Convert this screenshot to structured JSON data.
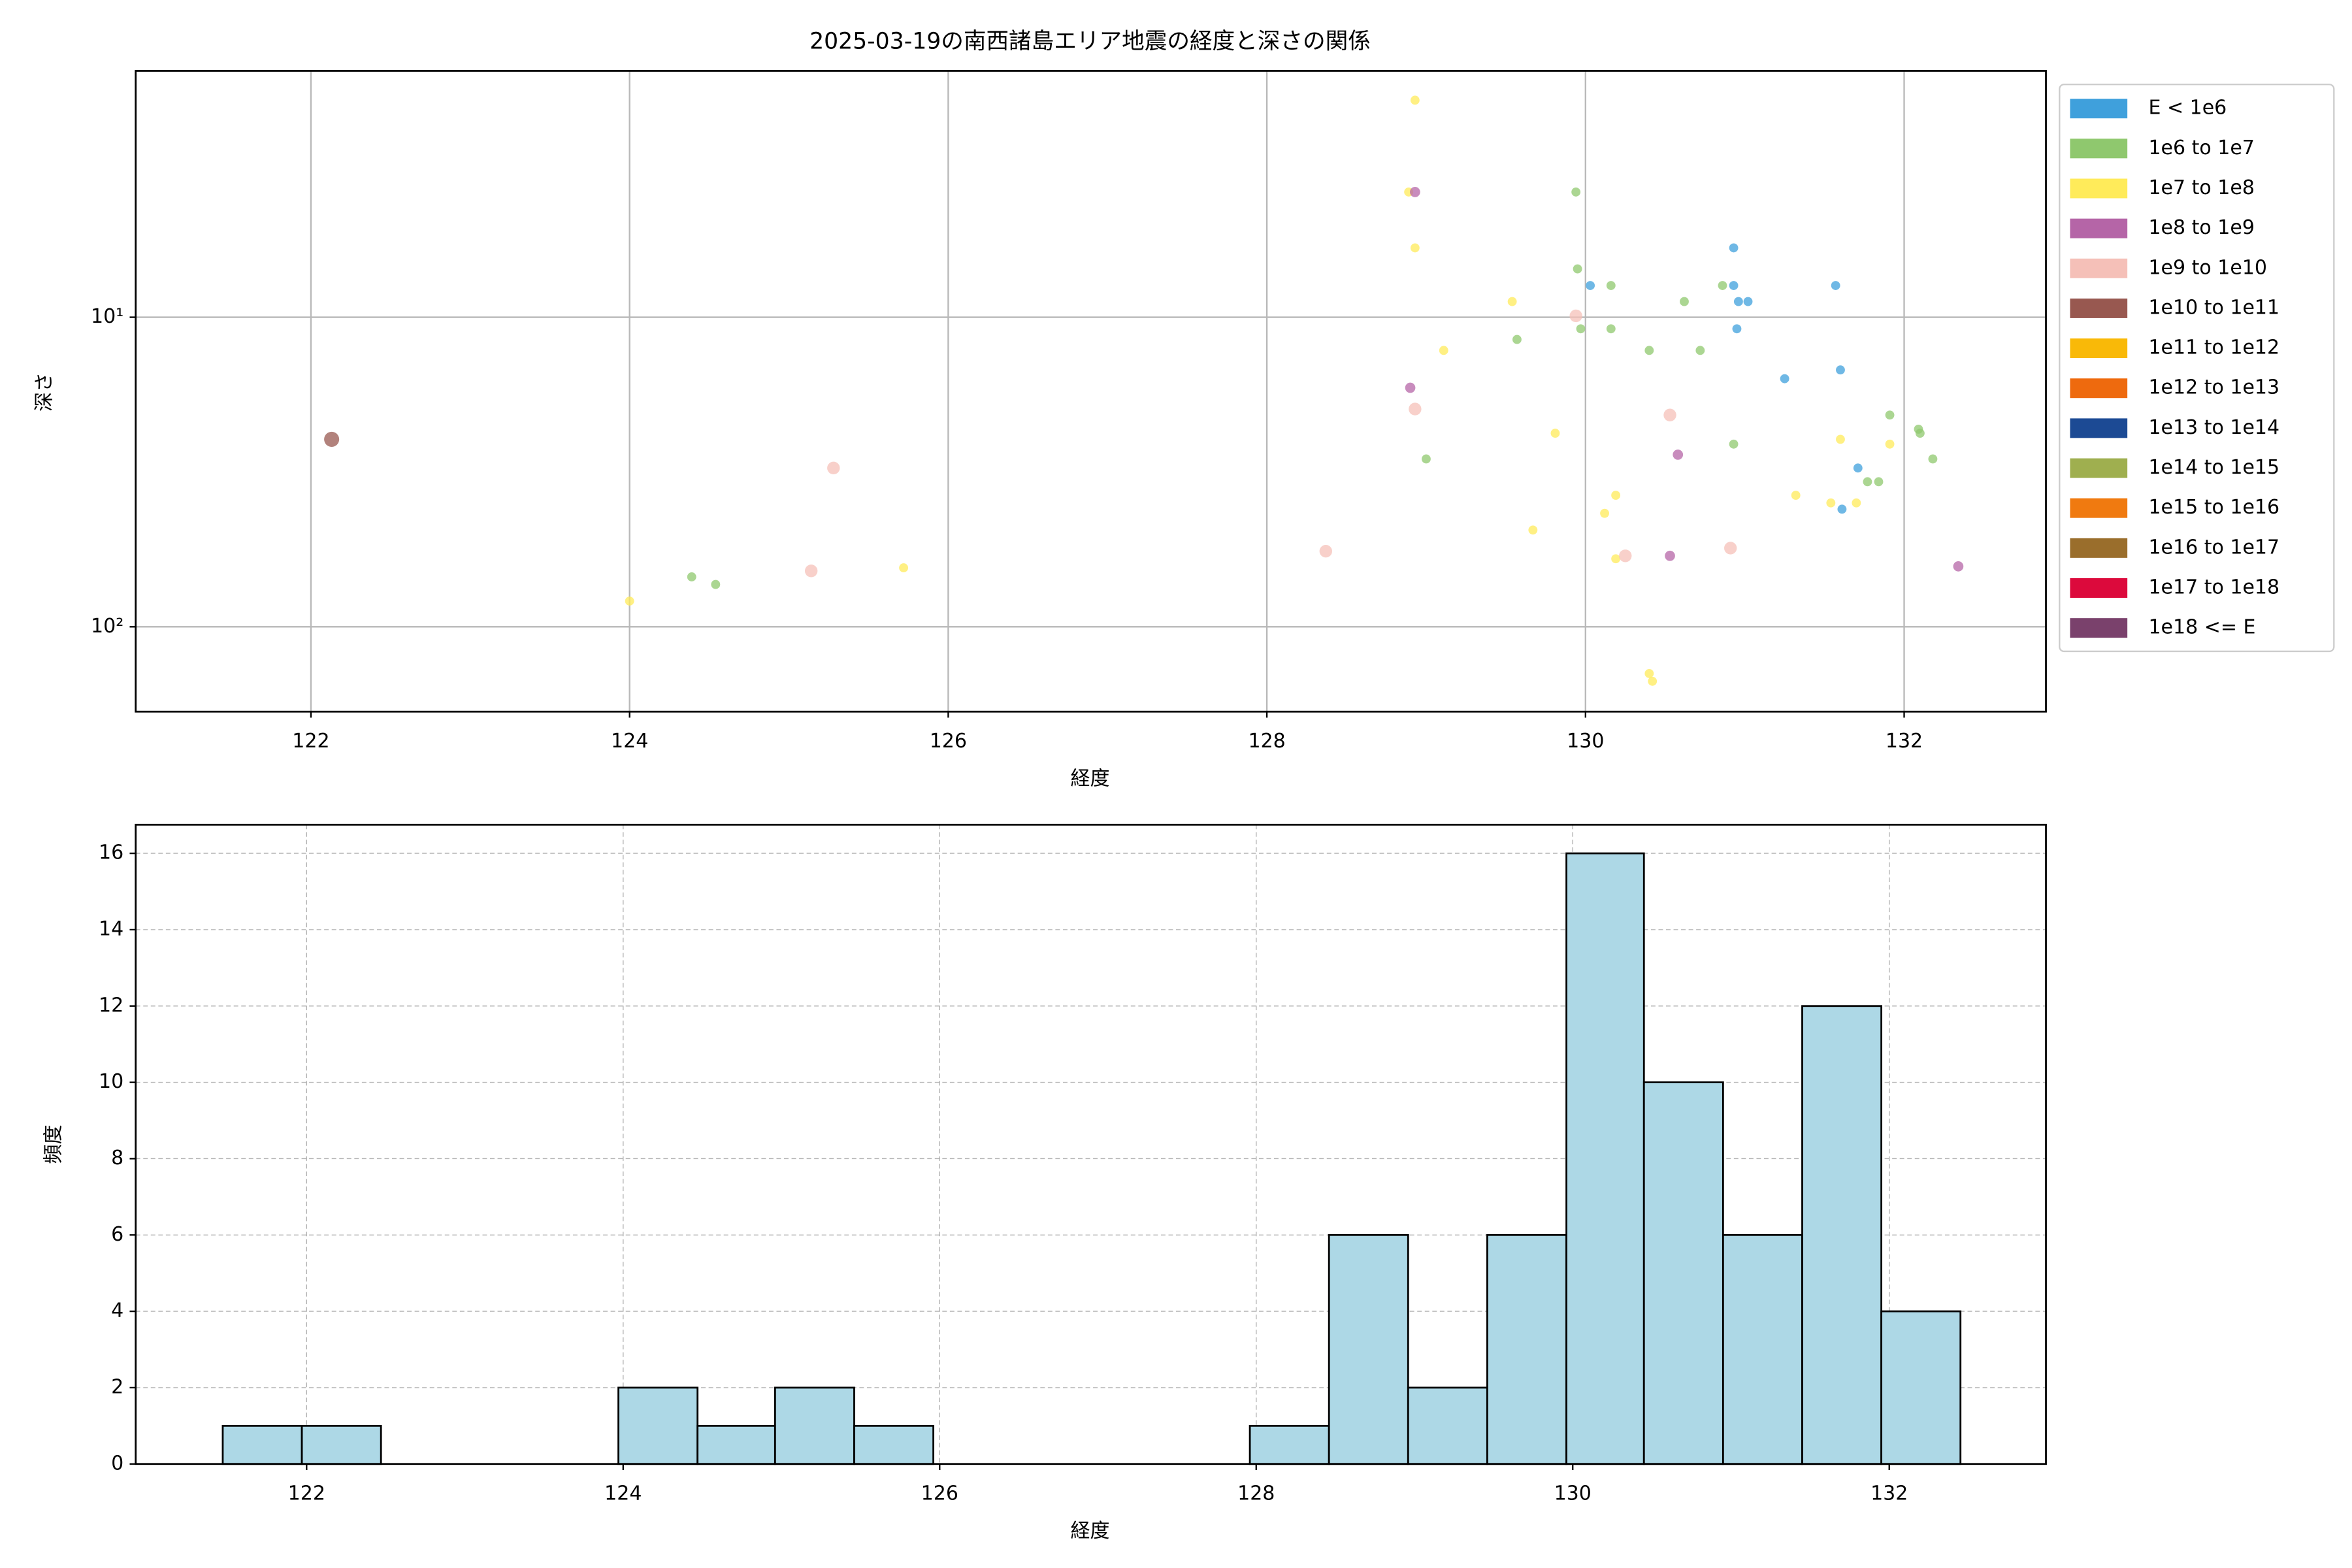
{
  "chart_data": [
    {
      "type": "scatter",
      "title": "2025-03-19の南西諸島エリア地震の経度と深さの関係",
      "xlabel": "経度",
      "ylabel": "深さ",
      "xlim": [
        120.9,
        132.89
      ],
      "xticks": [
        122,
        124,
        126,
        128,
        130,
        132
      ],
      "ylim": [
        1.6,
        188
      ],
      "y_inverted": true,
      "log_y": true,
      "yticks": [
        {
          "value": 10,
          "label": "10¹"
        },
        {
          "value": 100,
          "label": "10²"
        }
      ],
      "grid": true,
      "legend": "outside-right",
      "series": [
        {
          "name": "E < 1e6",
          "color": "#3fa0dc",
          "x": [
            130.03,
            130.93,
            130.93,
            130.96,
            131.02,
            130.95,
            131.57,
            131.25,
            131.6,
            131.71,
            131.61
          ],
          "values": [
            7.9,
            5.97,
            7.9,
            8.9,
            8.9,
            10.9,
            7.9,
            15.8,
            14.8,
            30.7,
            41.7
          ]
        },
        {
          "name": "1e6 to 1e7",
          "color": "#8fc86e",
          "x": [
            124.39,
            124.54,
            129.94,
            129.95,
            130.16,
            130.86,
            130.62,
            129.57,
            129.97,
            130.16,
            130.4,
            130.72,
            129.0,
            130.93,
            131.91,
            132.09,
            132.1,
            132.18,
            131.77,
            131.84
          ],
          "values": [
            69,
            73,
            3.94,
            6.98,
            7.9,
            7.9,
            8.9,
            11.8,
            10.9,
            10.9,
            12.8,
            12.8,
            28.7,
            25.7,
            20.7,
            23,
            23.7,
            28.7,
            34,
            34
          ]
        },
        {
          "name": "1e7 to 1e8",
          "color": "#ffeb5a",
          "x": [
            128.93,
            128.89,
            128.93,
            129.54,
            129.11,
            129.81,
            129.67,
            130.19,
            130.12,
            130.19,
            130.4,
            130.42,
            131.32,
            131.54,
            131.7,
            131.6,
            131.91,
            125.72,
            124.0
          ],
          "values": [
            1.99,
            3.94,
            5.97,
            8.9,
            12.8,
            23.7,
            48.7,
            37.6,
            43,
            60.3,
            141.6,
            150,
            37.6,
            39.8,
            39.8,
            24.8,
            25.7,
            64.5,
            82.6
          ]
        },
        {
          "name": "1e8 to 1e9",
          "color": "#b565a7",
          "x": [
            128.93,
            128.9,
            130.58,
            130.53,
            132.34
          ],
          "values": [
            3.94,
            16.9,
            27.8,
            59,
            63.8
          ]
        },
        {
          "name": "1e9 to 1e10",
          "color": "#f5c0b8",
          "x": [
            128.93,
            129.94,
            130.53,
            130.25,
            130.91,
            128.37,
            125.14,
            125.28
          ],
          "values": [
            19.8,
            9.9,
            20.7,
            59,
            55.7,
            57,
            66,
            30.7
          ]
        },
        {
          "name": "1e10 to 1e11",
          "color": "#985850",
          "x": [
            122.13
          ],
          "values": [
            24.8
          ]
        },
        {
          "name": "1e11 to 1e12",
          "color": "#f9b908",
          "x": [],
          "values": []
        },
        {
          "name": "1e12 to 1e13",
          "color": "#ee6a0e",
          "x": [],
          "values": []
        },
        {
          "name": "1e13 to 1e14",
          "color": "#1c4a94",
          "x": [],
          "values": []
        },
        {
          "name": "1e14 to 1e15",
          "color": "#9faf4f",
          "x": [],
          "values": []
        },
        {
          "name": "1e15 to 1e16",
          "color": "#f07a10",
          "x": [],
          "values": []
        },
        {
          "name": "1e16 to 1e17",
          "color": "#9a6e2c",
          "x": [],
          "values": []
        },
        {
          "name": "1e17 to 1e18",
          "color": "#dc0a3c",
          "x": [],
          "values": []
        },
        {
          "name": "1e18 <= E",
          "color": "#7a416c",
          "x": [],
          "values": []
        }
      ]
    },
    {
      "type": "histogram",
      "xlabel": "経度",
      "ylabel": "頻度",
      "color": "#add8e6",
      "xlim": [
        120.92,
        132.99
      ],
      "xticks": [
        122,
        124,
        126,
        128,
        130,
        132
      ],
      "ylim": [
        0,
        16.75
      ],
      "yticks": [
        0,
        2,
        4,
        6,
        8,
        10,
        12,
        14,
        16
      ],
      "grid": true,
      "bins": [
        121.47,
        121.97,
        122.47,
        122.97,
        123.47,
        123.97,
        124.47,
        124.96,
        125.46,
        125.96,
        126.46,
        126.96,
        127.46,
        127.96,
        128.46,
        128.96,
        129.46,
        129.96,
        130.45,
        130.95,
        131.45,
        131.95,
        132.45
      ],
      "values": [
        1,
        1,
        0,
        0,
        0,
        2,
        1,
        2,
        1,
        0,
        0,
        0,
        0,
        1,
        6,
        2,
        6,
        16,
        10,
        6,
        12,
        4
      ]
    }
  ]
}
